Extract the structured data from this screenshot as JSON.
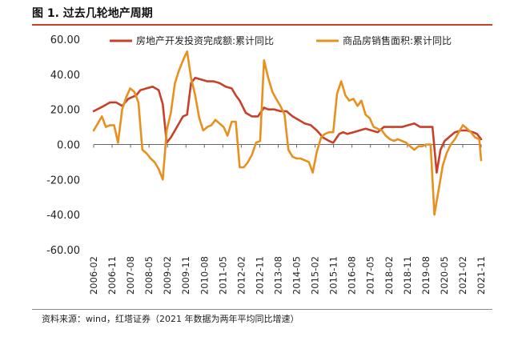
{
  "header": {
    "title": "图 1. 过去几轮地产周期"
  },
  "footer": {
    "source": "资料来源：wind，红塔证券（2021 年数据为两年平均同比增速）"
  },
  "chart_data": {
    "type": "line",
    "title": "图 1. 过去几轮地产周期",
    "xlabel": "",
    "ylabel": "",
    "ylim": [
      -60,
      60
    ],
    "yticks": [
      60,
      40,
      20,
      0,
      -20,
      -40,
      -60
    ],
    "ytick_labels": [
      "60.00",
      "40.00",
      "20.00",
      "0.00",
      "-20.00",
      "-40.00",
      "-60.00"
    ],
    "xtick_labels": [
      "2006-02",
      "2006-11",
      "2007-08",
      "2008-05",
      "2009-02",
      "2009-11",
      "2010-08",
      "2011-05",
      "2012-02",
      "2012-11",
      "2013-08",
      "2014-05",
      "2015-02",
      "2015-11",
      "2016-08",
      "2017-05",
      "2018-02",
      "2018-11",
      "2019-08",
      "2020-05",
      "2021-02",
      "2021-11"
    ],
    "legend_position": "top",
    "grid": false,
    "colors": {
      "series_1": "#c8402a",
      "series_2": "#e8901e"
    },
    "series": [
      {
        "name": "房地产开发投资完成额:累计同比",
        "points": [
          [
            2006.08,
            19
          ],
          [
            2006.5,
            22
          ],
          [
            2006.75,
            24
          ],
          [
            2007.0,
            24
          ],
          [
            2007.25,
            22
          ],
          [
            2007.5,
            26
          ],
          [
            2007.83,
            28
          ],
          [
            2008.0,
            31
          ],
          [
            2008.25,
            32
          ],
          [
            2008.5,
            33
          ],
          [
            2008.75,
            31
          ],
          [
            2008.92,
            23
          ],
          [
            2009.08,
            1
          ],
          [
            2009.25,
            4
          ],
          [
            2009.5,
            10
          ],
          [
            2009.75,
            16
          ],
          [
            2009.92,
            17
          ],
          [
            2010.08,
            35
          ],
          [
            2010.25,
            38
          ],
          [
            2010.5,
            37
          ],
          [
            2010.75,
            36
          ],
          [
            2011.0,
            36
          ],
          [
            2011.25,
            35
          ],
          [
            2011.5,
            33
          ],
          [
            2011.75,
            32
          ],
          [
            2011.92,
            28
          ],
          [
            2012.08,
            25
          ],
          [
            2012.33,
            18
          ],
          [
            2012.58,
            16
          ],
          [
            2012.83,
            16
          ],
          [
            2013.08,
            21
          ],
          [
            2013.25,
            20
          ],
          [
            2013.5,
            20
          ],
          [
            2013.75,
            19
          ],
          [
            2014.0,
            19
          ],
          [
            2014.25,
            16
          ],
          [
            2014.5,
            14
          ],
          [
            2014.75,
            12
          ],
          [
            2015.0,
            11
          ],
          [
            2015.25,
            8
          ],
          [
            2015.5,
            4
          ],
          [
            2015.75,
            2
          ],
          [
            2015.92,
            1
          ],
          [
            2016.17,
            6
          ],
          [
            2016.33,
            7
          ],
          [
            2016.5,
            6
          ],
          [
            2016.75,
            7
          ],
          [
            2017.0,
            8
          ],
          [
            2017.25,
            9
          ],
          [
            2017.5,
            8
          ],
          [
            2017.75,
            7
          ],
          [
            2018.0,
            10
          ],
          [
            2018.25,
            10
          ],
          [
            2018.5,
            10
          ],
          [
            2018.75,
            10
          ],
          [
            2019.0,
            11
          ],
          [
            2019.25,
            12
          ],
          [
            2019.5,
            10
          ],
          [
            2019.75,
            10
          ],
          [
            2020.0,
            10
          ],
          [
            2020.17,
            -16
          ],
          [
            2020.33,
            -3
          ],
          [
            2020.5,
            2
          ],
          [
            2020.75,
            5
          ],
          [
            2020.92,
            7
          ],
          [
            2021.17,
            8
          ],
          [
            2021.42,
            8
          ],
          [
            2021.67,
            7
          ],
          [
            2021.83,
            6
          ],
          [
            2022.0,
            3
          ]
        ]
      },
      {
        "name": "商品房销售面积:累计同比",
        "points": [
          [
            2006.08,
            8
          ],
          [
            2006.25,
            12
          ],
          [
            2006.42,
            16
          ],
          [
            2006.58,
            10
          ],
          [
            2006.75,
            11
          ],
          [
            2006.92,
            11
          ],
          [
            2007.08,
            1
          ],
          [
            2007.25,
            20
          ],
          [
            2007.42,
            27
          ],
          [
            2007.58,
            32
          ],
          [
            2007.75,
            30
          ],
          [
            2007.92,
            24
          ],
          [
            2008.08,
            -3
          ],
          [
            2008.25,
            -5
          ],
          [
            2008.42,
            -8
          ],
          [
            2008.58,
            -10
          ],
          [
            2008.75,
            -14
          ],
          [
            2008.92,
            -20
          ],
          [
            2009.08,
            8
          ],
          [
            2009.25,
            18
          ],
          [
            2009.42,
            35
          ],
          [
            2009.58,
            42
          ],
          [
            2009.75,
            48
          ],
          [
            2009.92,
            53
          ],
          [
            2010.08,
            38
          ],
          [
            2010.25,
            28
          ],
          [
            2010.42,
            15
          ],
          [
            2010.58,
            8
          ],
          [
            2010.75,
            10
          ],
          [
            2010.92,
            11
          ],
          [
            2011.08,
            14
          ],
          [
            2011.25,
            12
          ],
          [
            2011.42,
            10
          ],
          [
            2011.58,
            5
          ],
          [
            2011.75,
            13
          ],
          [
            2011.92,
            13
          ],
          [
            2012.08,
            -13
          ],
          [
            2012.25,
            -13
          ],
          [
            2012.42,
            -10
          ],
          [
            2012.58,
            -6
          ],
          [
            2012.75,
            1
          ],
          [
            2012.92,
            2
          ],
          [
            2013.08,
            48
          ],
          [
            2013.25,
            38
          ],
          [
            2013.42,
            30
          ],
          [
            2013.58,
            26
          ],
          [
            2013.75,
            22
          ],
          [
            2013.92,
            17
          ],
          [
            2014.08,
            -3
          ],
          [
            2014.25,
            -7
          ],
          [
            2014.42,
            -8
          ],
          [
            2014.58,
            -8
          ],
          [
            2014.75,
            -9
          ],
          [
            2014.92,
            -10
          ],
          [
            2015.08,
            -16
          ],
          [
            2015.25,
            -4
          ],
          [
            2015.42,
            4
          ],
          [
            2015.58,
            6
          ],
          [
            2015.75,
            7
          ],
          [
            2015.92,
            7
          ],
          [
            2016.08,
            29
          ],
          [
            2016.25,
            36
          ],
          [
            2016.42,
            28
          ],
          [
            2016.58,
            25
          ],
          [
            2016.75,
            26
          ],
          [
            2016.92,
            22
          ],
          [
            2017.08,
            25
          ],
          [
            2017.25,
            17
          ],
          [
            2017.42,
            15
          ],
          [
            2017.58,
            10
          ],
          [
            2017.75,
            9
          ],
          [
            2017.92,
            8
          ],
          [
            2018.08,
            5
          ],
          [
            2018.25,
            3
          ],
          [
            2018.42,
            2
          ],
          [
            2018.58,
            3
          ],
          [
            2018.75,
            2
          ],
          [
            2018.92,
            1
          ],
          [
            2019.08,
            -1
          ],
          [
            2019.25,
            -3
          ],
          [
            2019.42,
            -1
          ],
          [
            2019.58,
            -1
          ],
          [
            2019.75,
            0
          ],
          [
            2019.92,
            0
          ],
          [
            2020.08,
            -40
          ],
          [
            2020.25,
            -26
          ],
          [
            2020.42,
            -12
          ],
          [
            2020.58,
            -5
          ],
          [
            2020.75,
            0
          ],
          [
            2020.92,
            3
          ],
          [
            2021.08,
            7
          ],
          [
            2021.25,
            11
          ],
          [
            2021.42,
            9
          ],
          [
            2021.58,
            7
          ],
          [
            2021.75,
            4
          ],
          [
            2021.92,
            3
          ],
          [
            2022.0,
            -9
          ]
        ]
      }
    ]
  }
}
